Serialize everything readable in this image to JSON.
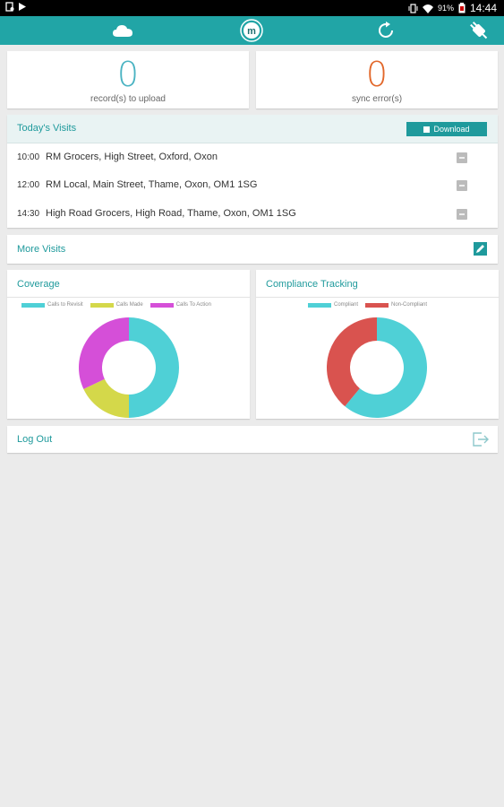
{
  "status_bar": {
    "battery": "91%",
    "time": "14:44"
  },
  "app_bar": {
    "icons": [
      "cloud-icon",
      "logo-icon",
      "refresh-icon",
      "plug-icon"
    ],
    "logo_letter": "m"
  },
  "stats": {
    "records_count": "0",
    "records_label": "record(s) to upload",
    "errors_count": "0",
    "errors_label": "sync error(s)"
  },
  "visits": {
    "title": "Today's Visits",
    "download_label": "Download",
    "rows": [
      {
        "time": "10:00",
        "address": "RM Grocers, High Street, Oxford, Oxon"
      },
      {
        "time": "12:00",
        "address": "RM Local, Main Street, Thame, Oxon, OM1 1SG"
      },
      {
        "time": "14:30",
        "address": "High Road Grocers, High Road, Thame, Oxon, OM1 1SG"
      }
    ]
  },
  "more_visits": {
    "label": "More Visits"
  },
  "coverage": {
    "title": "Coverage",
    "legend": [
      "Calls to Revisit",
      "Calls Made",
      "Calls To Action"
    ],
    "colors": [
      "#4fd0d6",
      "#d4d84a",
      "#d54fd8"
    ],
    "values": [
      50,
      18,
      32
    ]
  },
  "compliance": {
    "title": "Compliance Tracking",
    "legend": [
      "Compliant",
      "Non-Compliant"
    ],
    "colors": [
      "#4fd0d6",
      "#d9534f"
    ],
    "values": [
      61,
      39
    ]
  },
  "logout": {
    "label": "Log Out"
  },
  "colors": {
    "accent": "#21a5a6",
    "records_num": "#4ab3c2",
    "errors_num": "#e2672a"
  }
}
